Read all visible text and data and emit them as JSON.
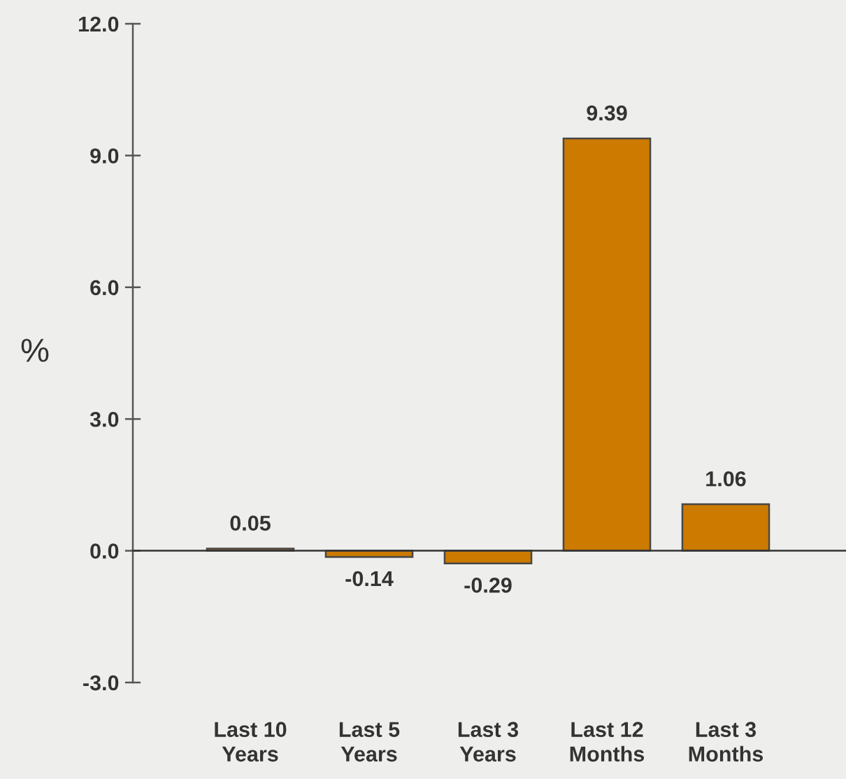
{
  "chart_data": {
    "type": "bar",
    "ylabel": "%",
    "categories": [
      "Last 10\nYears",
      "Last 5\nYears",
      "Last 3\nYears",
      "Last 12\nMonths",
      "Last 3\nMonths"
    ],
    "values": [
      0.05,
      -0.14,
      -0.29,
      9.39,
      1.06
    ],
    "color": "#cc7a00",
    "ylim": [
      -3,
      12
    ],
    "yticks": [
      {
        "value": -3,
        "label": "-3.0"
      },
      {
        "value": 0,
        "label": "0.0"
      },
      {
        "value": 3,
        "label": "3.0"
      },
      {
        "value": 6,
        "label": "6.0"
      },
      {
        "value": 9,
        "label": "9.0"
      },
      {
        "value": 12,
        "label": "12.0"
      }
    ],
    "data_labels": true
  }
}
